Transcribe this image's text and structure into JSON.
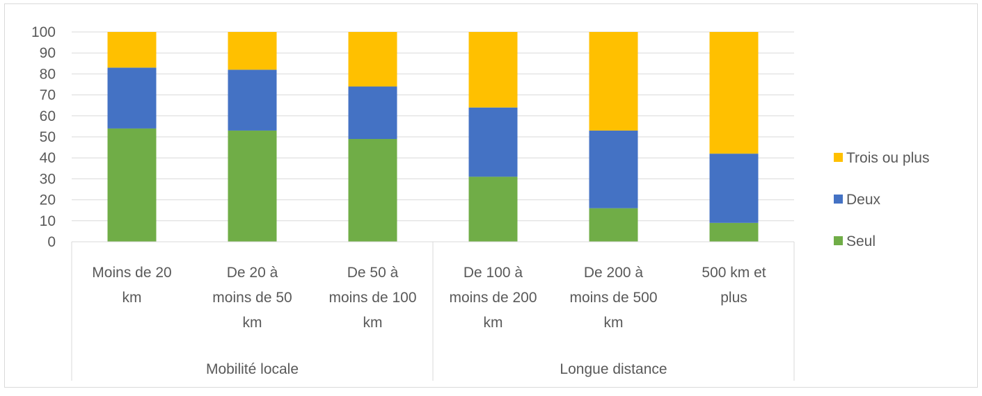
{
  "chart_data": {
    "type": "bar",
    "stacked": true,
    "groups": [
      {
        "label": "Mobilité locale",
        "categories": [
          "Moins de 20 km",
          "De 20 à moins de 50 km",
          "De 50 à moins de 100 km"
        ]
      },
      {
        "label": "Longue distance",
        "categories": [
          "De 100 à moins de 200 km",
          "De 200 à moins de 500 km",
          "500 km et plus"
        ]
      }
    ],
    "categories": [
      [
        "Moins de 20",
        "km"
      ],
      [
        "De 20 à",
        "moins de 50",
        "km"
      ],
      [
        "De 50 à",
        "moins de 100",
        "km"
      ],
      [
        "De 100 à",
        "moins de 200",
        "km"
      ],
      [
        "De 200 à",
        "moins de 500",
        "km"
      ],
      [
        "500 km et",
        "plus"
      ]
    ],
    "series": [
      {
        "name": "Seul",
        "color": "#70ad47",
        "values": [
          54,
          53,
          49,
          31,
          16,
          9
        ]
      },
      {
        "name": "Deux",
        "color": "#4472c4",
        "values": [
          29,
          29,
          25,
          33,
          37,
          33
        ]
      },
      {
        "name": "Trois ou plus",
        "color": "#ffc000",
        "values": [
          17,
          18,
          26,
          36,
          47,
          58
        ]
      }
    ],
    "ylim": [
      0,
      100
    ],
    "yticks": [
      0,
      10,
      20,
      30,
      40,
      50,
      60,
      70,
      80,
      90,
      100
    ],
    "grid": true,
    "legend": "right",
    "title": "",
    "xlabel": "",
    "ylabel": ""
  }
}
